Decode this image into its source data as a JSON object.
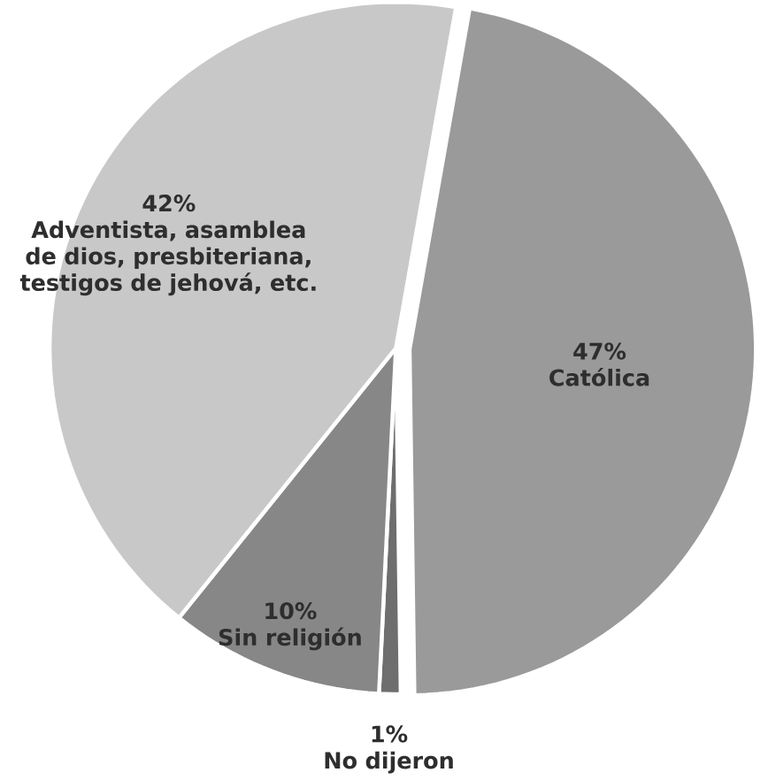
{
  "chart_data": {
    "type": "pie",
    "categories": [
      "Católica",
      "No dijeron",
      "Sin religión",
      "Adventista, asamblea de dios, presbiteriana, testigos de jehová, etc."
    ],
    "values": [
      47,
      1,
      10,
      42
    ],
    "value_labels": [
      "47%",
      "1%",
      "10%",
      "42%"
    ],
    "colors": [
      "#9a9a9a",
      "#6e6e6e",
      "#878787",
      "#c8c8c8"
    ]
  }
}
